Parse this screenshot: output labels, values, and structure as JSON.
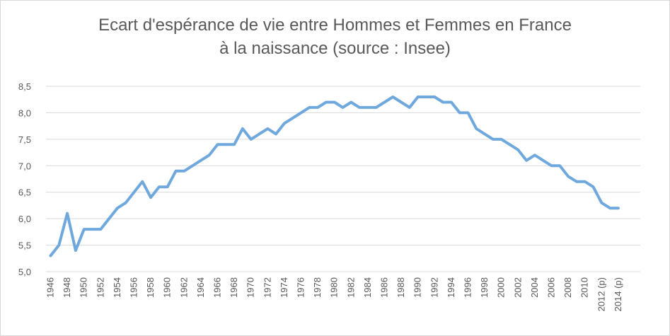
{
  "chart_data": {
    "type": "line",
    "title": "Ecart d'espérance de vie entre Hommes et Femmes en France",
    "subtitle": "à la naissance (source : Insee)",
    "xlabel": "",
    "ylabel": "",
    "ylim": [
      5.0,
      8.5
    ],
    "y_ticks": [
      "5,0",
      "5,5",
      "6,0",
      "6,5",
      "7,0",
      "7,5",
      "8,0",
      "8,5"
    ],
    "grid": true,
    "legend": "none",
    "line_color": "#6fa8dc",
    "x": [
      "1946",
      "1947",
      "1948",
      "1949",
      "1950",
      "1951",
      "1952",
      "1953",
      "1954",
      "1955",
      "1956",
      "1957",
      "1958",
      "1959",
      "1960",
      "1961",
      "1962",
      "1963",
      "1964",
      "1965",
      "1966",
      "1967",
      "1968",
      "1969",
      "1970",
      "1971",
      "1972",
      "1973",
      "1974",
      "1975",
      "1976",
      "1977",
      "1978",
      "1979",
      "1980",
      "1981",
      "1982",
      "1983",
      "1984",
      "1985",
      "1986",
      "1987",
      "1988",
      "1989",
      "1990",
      "1991",
      "1992",
      "1993",
      "1994",
      "1995",
      "1996",
      "1997",
      "1998",
      "1999",
      "2000",
      "2001",
      "2002",
      "2003",
      "2004",
      "2005",
      "2006",
      "2007",
      "2008",
      "2009",
      "2010",
      "2011",
      "2012 (p)",
      "2013",
      "2014 (p)"
    ],
    "x_tick_labels": [
      "1946",
      "1948",
      "1950",
      "1952",
      "1954",
      "1956",
      "1958",
      "1960",
      "1962",
      "1964",
      "1966",
      "1968",
      "1970",
      "1972",
      "1974",
      "1976",
      "1978",
      "1980",
      "1982",
      "1984",
      "1986",
      "1988",
      "1990",
      "1992",
      "1994",
      "1996",
      "1998",
      "2000",
      "2002",
      "2004",
      "2006",
      "2008",
      "2010",
      "2012 (p)",
      "2014 (p)"
    ],
    "values": [
      5.3,
      5.5,
      6.1,
      5.4,
      5.8,
      5.8,
      5.8,
      6.0,
      6.2,
      6.3,
      6.5,
      6.7,
      6.4,
      6.6,
      6.6,
      6.9,
      6.9,
      7.0,
      7.1,
      7.2,
      7.4,
      7.4,
      7.4,
      7.7,
      7.5,
      7.6,
      7.7,
      7.6,
      7.8,
      7.9,
      8.0,
      8.1,
      8.1,
      8.2,
      8.2,
      8.1,
      8.2,
      8.1,
      8.1,
      8.1,
      8.2,
      8.3,
      8.2,
      8.1,
      8.3,
      8.3,
      8.3,
      8.2,
      8.2,
      8.0,
      8.0,
      7.7,
      7.6,
      7.5,
      7.5,
      7.4,
      7.3,
      7.1,
      7.2,
      7.1,
      7.0,
      7.0,
      6.8,
      6.7,
      6.7,
      6.6,
      6.3,
      6.2,
      6.2
    ]
  }
}
